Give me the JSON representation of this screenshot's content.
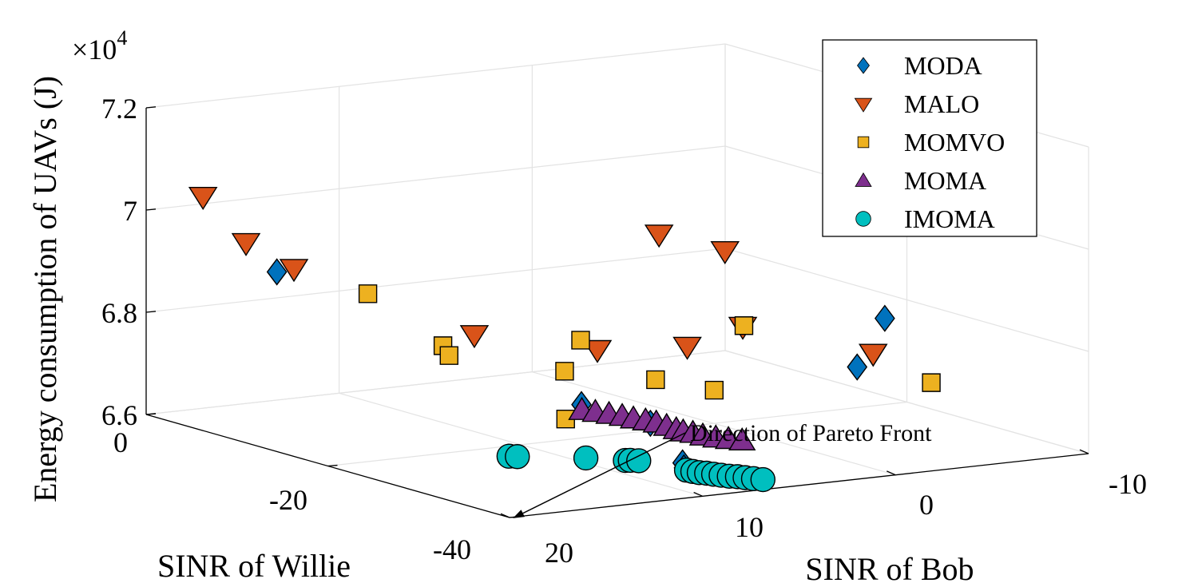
{
  "chart_data": {
    "type": "scatter3d",
    "title": "",
    "xlabel": "SINR of Bob",
    "ylabel": "SINR of Willie",
    "zlabel": "Energy consumption of UAVs (J)",
    "z_multiplier": "×10",
    "z_multiplier_exp": "4",
    "xlim": [
      -10,
      20
    ],
    "ylim": [
      -40,
      0
    ],
    "zlim": [
      6.6,
      7.2
    ],
    "x_ticks": [
      "20",
      "10",
      "0",
      "-10"
    ],
    "y_ticks": [
      "-40",
      "-20",
      "0"
    ],
    "z_ticks": [
      "6.6",
      "6.8",
      "7",
      "7.2"
    ],
    "grid": true,
    "legend_position": "top-right",
    "annotation": "Direction of Pareto Front",
    "series": [
      {
        "name": "MODA",
        "marker": "diamond",
        "color": "#0072BD",
        "points": [
          [
            18.96,
            -12.18,
            6.936
          ],
          [
            10.26,
            -27.22,
            6.716
          ],
          [
            8.24,
            -34.06,
            6.628
          ],
          [
            8.25,
            -34.23,
            6.619
          ],
          [
            7.13,
            -28.16,
            6.671
          ],
          [
            -1.13,
            -33.37,
            6.773
          ],
          [
            -5.74,
            -26.62,
            6.815
          ]
        ]
      },
      {
        "name": "MALO",
        "marker": "triangle-down",
        "color": "#D95319",
        "points": [
          [
            21.78,
            -10.04,
            7.085
          ],
          [
            20.07,
            -11.14,
            6.993
          ],
          [
            18.59,
            -13.27,
            6.947
          ],
          [
            10.55,
            -16.05,
            6.798
          ],
          [
            8.19,
            -24.58,
            6.802
          ],
          [
            4.55,
            -26.74,
            6.804
          ],
          [
            2.07,
            -27.58,
            6.837
          ],
          [
            0.86,
            -15.79,
            6.953
          ],
          [
            -1.3,
            -18.46,
            6.925
          ],
          [
            -5.64,
            -25.55,
            6.742
          ]
        ]
      },
      {
        "name": "MOMVO",
        "marker": "square",
        "color": "#EDB120",
        "points": [
          [
            14.07,
            -20.07,
            6.811
          ],
          [
            13.72,
            -20.0,
            6.79
          ],
          [
            17.3,
            -18.67,
            6.919
          ],
          [
            10.27,
            -25.39,
            6.772
          ],
          [
            12.08,
            -29.35,
            6.706
          ],
          [
            9.22,
            -24.92,
            6.826
          ],
          [
            6.64,
            -27.69,
            6.752
          ],
          [
            2.02,
            -27.6,
            6.838
          ],
          [
            4.76,
            -30.15,
            6.736
          ],
          [
            -5.0,
            -33.31,
            6.726
          ]
        ]
      },
      {
        "name": "MOMA",
        "marker": "triangle-up",
        "color": "#7E2F8E",
        "points": [
          [
            10.54,
            -27.86,
            6.71
          ],
          [
            10.01,
            -28.22,
            6.706
          ],
          [
            9.5,
            -28.64,
            6.702
          ],
          [
            9.0,
            -29.03,
            6.698
          ],
          [
            8.58,
            -29.37,
            6.693
          ],
          [
            8.12,
            -29.73,
            6.689
          ],
          [
            7.73,
            -30.08,
            6.685
          ],
          [
            7.38,
            -30.48,
            6.679
          ],
          [
            7.05,
            -30.84,
            6.673
          ],
          [
            6.82,
            -31.11,
            6.669
          ],
          [
            6.44,
            -31.37,
            6.666
          ],
          [
            6.09,
            -31.72,
            6.661
          ],
          [
            5.6,
            -32.11,
            6.657
          ],
          [
            5.12,
            -32.48,
            6.654
          ],
          [
            4.6,
            -32.88,
            6.651
          ]
        ]
      },
      {
        "name": "IMOMA",
        "marker": "circle",
        "color": "#00BFBF",
        "points": [
          [
            13.97,
            -27.13,
            6.63
          ],
          [
            13.58,
            -27.22,
            6.628
          ],
          [
            11.54,
            -30.43,
            6.633
          ],
          [
            10.33,
            -32.2,
            6.632
          ],
          [
            10.13,
            -32.32,
            6.632
          ],
          [
            9.8,
            -32.55,
            6.631
          ],
          [
            8.92,
            -35.94,
            6.626
          ],
          [
            8.72,
            -36.21,
            6.624
          ],
          [
            8.5,
            -36.45,
            6.622
          ],
          [
            8.23,
            -36.69,
            6.621
          ],
          [
            7.97,
            -36.91,
            6.619
          ],
          [
            7.69,
            -37.14,
            6.617
          ],
          [
            7.38,
            -37.38,
            6.615
          ],
          [
            7.07,
            -37.62,
            6.614
          ],
          [
            6.78,
            -37.85,
            6.612
          ],
          [
            6.46,
            -38.09,
            6.61
          ],
          [
            6.1,
            -38.36,
            6.608
          ]
        ]
      }
    ]
  }
}
